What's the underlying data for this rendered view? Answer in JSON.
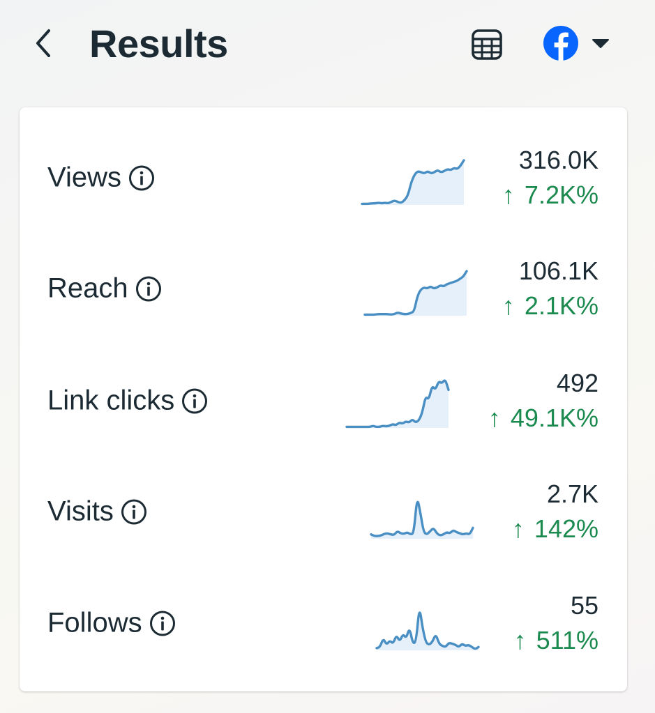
{
  "header": {
    "title": "Results",
    "back_icon": "chevron-left-icon",
    "table_icon": "table-icon",
    "account_icon": "facebook-icon",
    "dropdown_icon": "caret-down-icon"
  },
  "colors": {
    "accent_blue": "#0866ff",
    "positive_green": "#1b8a4f",
    "sparkline_stroke": "#4a8fc4",
    "sparkline_fill": "#e6f0fa",
    "text_primary": "#1c2b33"
  },
  "metrics": [
    {
      "label": "Views",
      "value": "316.0K",
      "change_arrow": "↑",
      "change": "7.2K%",
      "trend": [
        2,
        2,
        2,
        3,
        3,
        4,
        3,
        4,
        3,
        6,
        8,
        5,
        4,
        9,
        18,
        42,
        56,
        62,
        60,
        58,
        62,
        58,
        60,
        64,
        60,
        62,
        66,
        64,
        68,
        66,
        72,
        82
      ]
    },
    {
      "label": "Reach",
      "value": "106.1K",
      "change_arrow": "↑",
      "change": "2.1K%",
      "trend": [
        2,
        2,
        2,
        2,
        3,
        3,
        3,
        3,
        2,
        3,
        6,
        4,
        3,
        3,
        5,
        8,
        36,
        48,
        52,
        50,
        54,
        50,
        52,
        56,
        54,
        58,
        60,
        62,
        64,
        68,
        72,
        82
      ]
    },
    {
      "label": "Link clicks",
      "value": "492",
      "change_arrow": "↑",
      "change": "49.1K%",
      "trend": [
        2,
        2,
        2,
        2,
        2,
        2,
        2,
        2,
        4,
        2,
        2,
        4,
        3,
        4,
        7,
        5,
        10,
        8,
        12,
        10,
        16,
        10,
        14,
        28,
        58,
        52,
        78,
        70,
        86,
        82,
        90,
        70
      ]
    },
    {
      "label": "Visits",
      "value": "2.7K",
      "change_arrow": "↑",
      "change": "142%",
      "trend": [
        8,
        5,
        5,
        6,
        9,
        10,
        8,
        7,
        14,
        10,
        9,
        12,
        8,
        10,
        78,
        48,
        12,
        8,
        14,
        20,
        10,
        6,
        8,
        12,
        10,
        16,
        12,
        10,
        8,
        10,
        8,
        20
      ]
    },
    {
      "label": "Follows",
      "value": "55",
      "change_arrow": "↑",
      "change": "511%",
      "trend": [
        4,
        6,
        22,
        10,
        18,
        12,
        28,
        16,
        30,
        22,
        42,
        12,
        16,
        82,
        40,
        14,
        10,
        16,
        30,
        12,
        8,
        6,
        14,
        12,
        10,
        6,
        12,
        8,
        10,
        6,
        2,
        6
      ]
    }
  ]
}
